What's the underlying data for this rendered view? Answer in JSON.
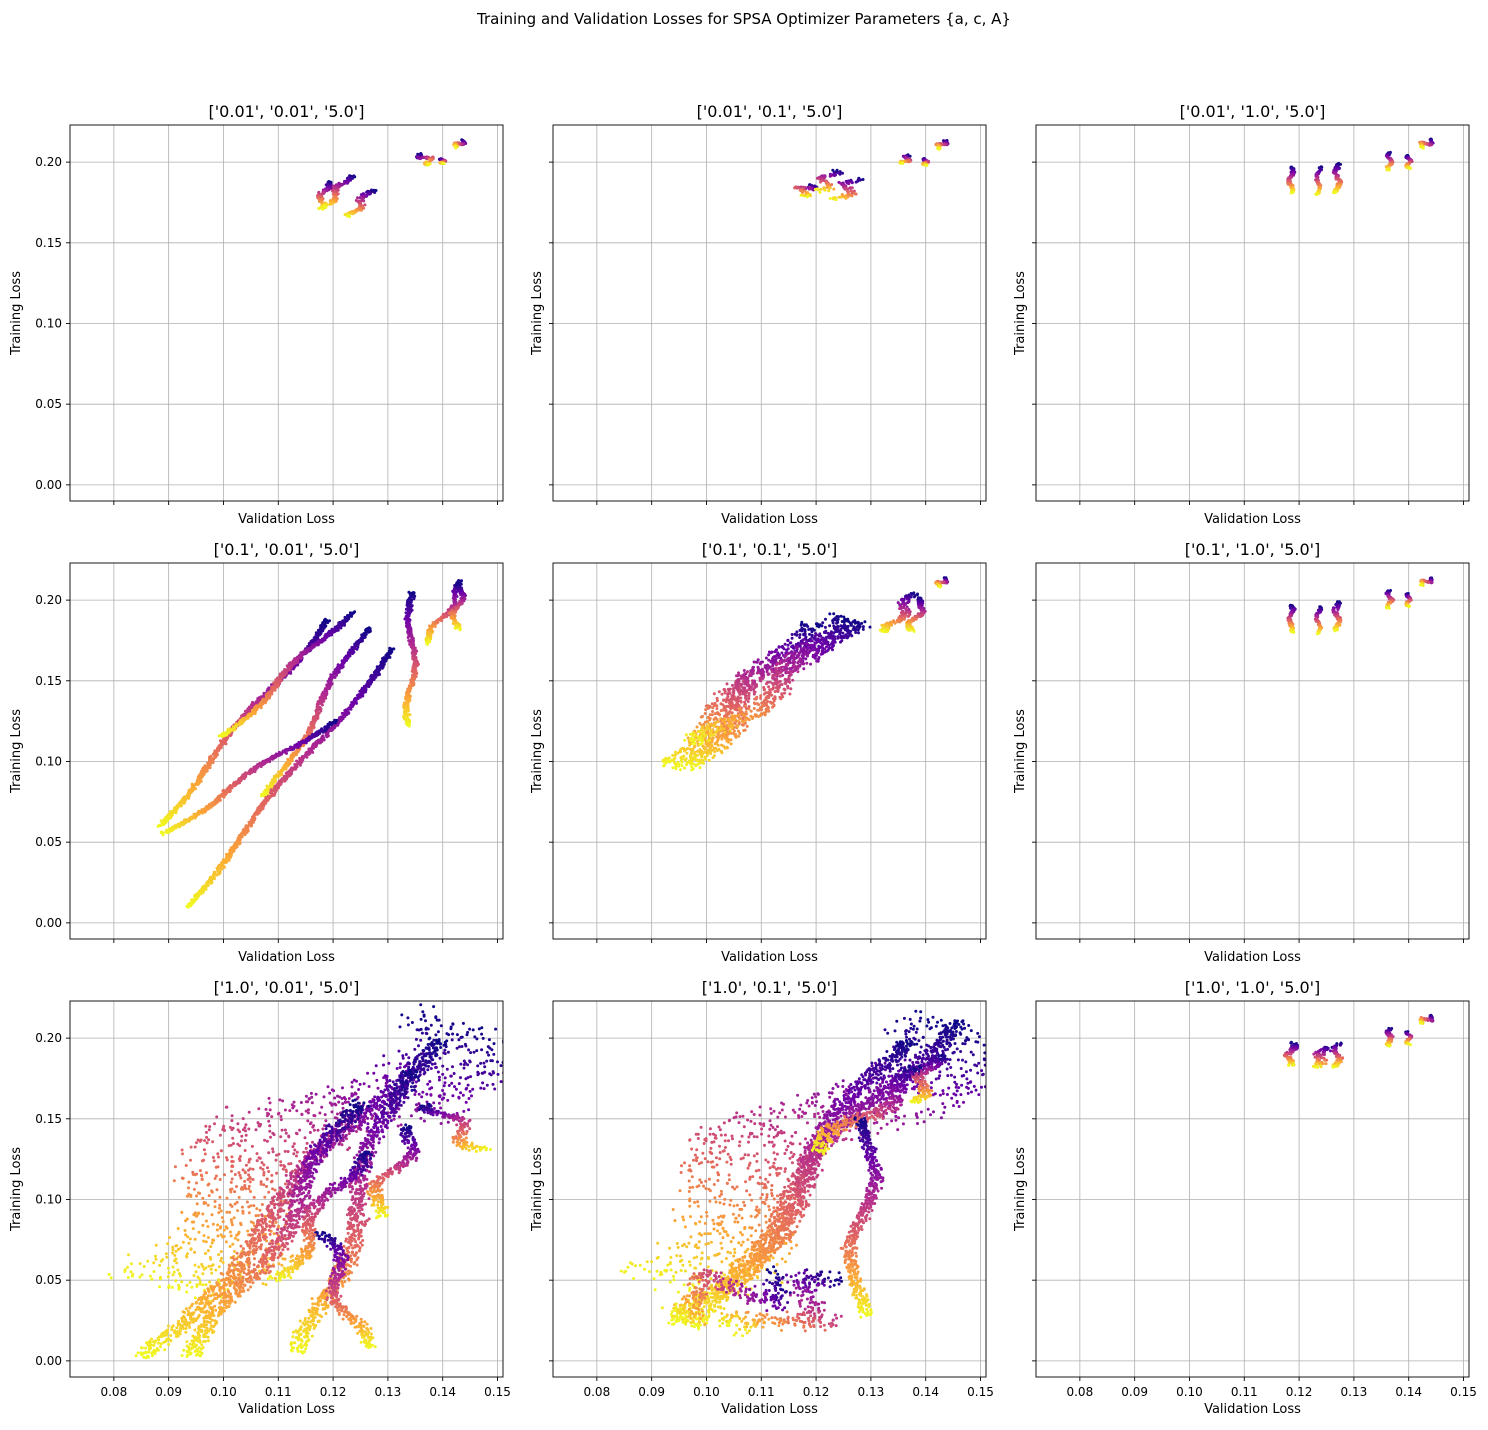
{
  "figure": {
    "suptitle": "Training and Validation Losses for SPSA Optimizer Parameters {a, c, A}"
  },
  "colormap": {
    "name": "plasma",
    "stops": [
      "#0d0887",
      "#6a00a8",
      "#b12a90",
      "#e16462",
      "#fca636",
      "#f0f921"
    ]
  },
  "chart_data": [
    {
      "type": "scatter",
      "title": "['0.01', '0.01', '5.0']",
      "xlabel": "Validation Loss",
      "ylabel": "Training Loss",
      "xlim": [
        0.072,
        0.151
      ],
      "ylim": [
        -0.01,
        0.223
      ],
      "x_ticks": [
        0.08,
        0.09,
        0.1,
        0.11,
        0.12,
        0.13,
        0.14,
        0.15
      ],
      "y_ticks": [
        0.0,
        0.05,
        0.1,
        0.15,
        0.2
      ],
      "show_x_tick_labels": false,
      "show_y_tick_labels": true,
      "grid": true,
      "series": [
        {
          "from": [
            0.119,
            0.188
          ],
          "to": [
            0.1175,
            0.171
          ],
          "width": 0.001,
          "jitter": 0.001
        },
        {
          "from": [
            0.123,
            0.192
          ],
          "to": [
            0.1185,
            0.172
          ],
          "width": 0.001,
          "jitter": 0.001
        },
        {
          "from": [
            0.127,
            0.183
          ],
          "to": [
            0.123,
            0.166
          ],
          "width": 0.0012,
          "jitter": 0.001
        },
        {
          "from": [
            0.136,
            0.205
          ],
          "to": [
            0.138,
            0.199
          ],
          "width": 0.0007,
          "jitter": 0.0015
        },
        {
          "from": [
            0.14,
            0.202
          ],
          "to": [
            0.14,
            0.199
          ],
          "width": 0.0004,
          "jitter": 0.0006
        },
        {
          "from": [
            0.144,
            0.213
          ],
          "to": [
            0.142,
            0.21
          ],
          "width": 0.0006,
          "jitter": 0.0008
        }
      ]
    },
    {
      "type": "scatter",
      "title": "['0.01', '0.1', '5.0']",
      "xlabel": "Validation Loss",
      "ylabel": "Training Loss",
      "xlim": [
        0.072,
        0.151
      ],
      "ylim": [
        -0.01,
        0.223
      ],
      "x_ticks": [
        0.08,
        0.09,
        0.1,
        0.11,
        0.12,
        0.13,
        0.14,
        0.15
      ],
      "y_ticks": [
        0.0,
        0.05,
        0.1,
        0.15,
        0.2
      ],
      "show_x_tick_labels": false,
      "show_y_tick_labels": false,
      "grid": true,
      "series": [
        {
          "from": [
            0.119,
            0.186
          ],
          "to": [
            0.117,
            0.18
          ],
          "width": 0.0012,
          "jitter": 0.002
        },
        {
          "from": [
            0.123,
            0.195
          ],
          "to": [
            0.121,
            0.182
          ],
          "width": 0.0015,
          "jitter": 0.002
        },
        {
          "from": [
            0.127,
            0.19
          ],
          "to": [
            0.1245,
            0.176
          ],
          "width": 0.0014,
          "jitter": 0.002
        },
        {
          "from": [
            0.137,
            0.204
          ],
          "to": [
            0.136,
            0.199
          ],
          "width": 0.0006,
          "jitter": 0.001
        },
        {
          "from": [
            0.14,
            0.202
          ],
          "to": [
            0.14,
            0.198
          ],
          "width": 0.0004,
          "jitter": 0.0006
        },
        {
          "from": [
            0.144,
            0.213
          ],
          "to": [
            0.142,
            0.209
          ],
          "width": 0.0006,
          "jitter": 0.0008
        }
      ]
    },
    {
      "type": "scatter",
      "title": "['0.01', '1.0', '5.0']",
      "xlabel": "Validation Loss",
      "ylabel": "Training Loss",
      "xlim": [
        0.072,
        0.151
      ],
      "ylim": [
        -0.01,
        0.223
      ],
      "x_ticks": [
        0.08,
        0.09,
        0.1,
        0.11,
        0.12,
        0.13,
        0.14,
        0.15
      ],
      "y_ticks": [
        0.0,
        0.05,
        0.1,
        0.15,
        0.2
      ],
      "show_x_tick_labels": false,
      "show_y_tick_labels": false,
      "grid": true,
      "series": [
        {
          "from": [
            0.1185,
            0.197
          ],
          "to": [
            0.1185,
            0.181
          ],
          "width": 0.0006,
          "jitter": 0.0006
        },
        {
          "from": [
            0.1235,
            0.197
          ],
          "to": [
            0.1235,
            0.18
          ],
          "width": 0.0005,
          "jitter": 0.0006
        },
        {
          "from": [
            0.127,
            0.199
          ],
          "to": [
            0.127,
            0.181
          ],
          "width": 0.0008,
          "jitter": 0.0006
        },
        {
          "from": [
            0.1365,
            0.206
          ],
          "to": [
            0.1365,
            0.195
          ],
          "width": 0.0006,
          "jitter": 0.0006
        },
        {
          "from": [
            0.14,
            0.204
          ],
          "to": [
            0.14,
            0.196
          ],
          "width": 0.0004,
          "jitter": 0.0006
        },
        {
          "from": [
            0.1445,
            0.213
          ],
          "to": [
            0.142,
            0.21
          ],
          "width": 0.0006,
          "jitter": 0.0008
        }
      ]
    },
    {
      "type": "scatter",
      "title": "['0.1', '0.01', '5.0']",
      "xlabel": "Validation Loss",
      "ylabel": "Training Loss",
      "xlim": [
        0.072,
        0.151
      ],
      "ylim": [
        -0.01,
        0.223
      ],
      "x_ticks": [
        0.08,
        0.09,
        0.1,
        0.11,
        0.12,
        0.13,
        0.14,
        0.15
      ],
      "y_ticks": [
        0.0,
        0.05,
        0.1,
        0.15,
        0.2
      ],
      "show_x_tick_labels": false,
      "show_y_tick_labels": true,
      "grid": true,
      "series": [
        {
          "from": [
            0.119,
            0.188
          ],
          "to": [
            0.088,
            0.06
          ],
          "width": 0.0008,
          "jitter": 0.0012
        },
        {
          "from": [
            0.123,
            0.193
          ],
          "to": [
            0.1,
            0.115
          ],
          "width": 0.0008,
          "jitter": 0.0012
        },
        {
          "from": [
            0.126,
            0.183
          ],
          "to": [
            0.108,
            0.078
          ],
          "width": 0.0008,
          "jitter": 0.0012
        },
        {
          "from": [
            0.1345,
            0.205
          ],
          "to": [
            0.134,
            0.122
          ],
          "width": 0.0008,
          "jitter": 0.0012
        },
        {
          "from": [
            0.144,
            0.212
          ],
          "to": [
            0.137,
            0.173
          ],
          "width": 0.0008,
          "jitter": 0.0012
        },
        {
          "from": [
            0.1435,
            0.21
          ],
          "to": [
            0.142,
            0.182
          ],
          "width": 0.0008,
          "jitter": 0.0012
        },
        {
          "from": [
            0.131,
            0.17
          ],
          "to": [
            0.093,
            0.01
          ],
          "width": 0.0008,
          "jitter": 0.0012
        },
        {
          "from": [
            0.12,
            0.126
          ],
          "to": [
            0.089,
            0.055
          ],
          "width": 0.0008,
          "jitter": 0.0012
        }
      ]
    },
    {
      "type": "scatter",
      "title": "['0.1', '0.1', '5.0']",
      "xlabel": "Validation Loss",
      "ylabel": "Training Loss",
      "xlim": [
        0.072,
        0.151
      ],
      "ylim": [
        -0.01,
        0.223
      ],
      "x_ticks": [
        0.08,
        0.09,
        0.1,
        0.11,
        0.12,
        0.13,
        0.14,
        0.15
      ],
      "y_ticks": [
        0.0,
        0.05,
        0.1,
        0.15,
        0.2
      ],
      "show_x_tick_labels": false,
      "show_y_tick_labels": false,
      "grid": true,
      "series": [
        {
          "from": [
            0.125,
            0.19
          ],
          "to": [
            0.092,
            0.098
          ],
          "width": 0.005,
          "jitter": 0.0035
        },
        {
          "from": [
            0.118,
            0.187
          ],
          "to": [
            0.097,
            0.096
          ],
          "width": 0.004,
          "jitter": 0.003
        },
        {
          "from": [
            0.127,
            0.188
          ],
          "to": [
            0.099,
            0.11
          ],
          "width": 0.004,
          "jitter": 0.003
        },
        {
          "from": [
            0.138,
            0.204
          ],
          "to": [
            0.133,
            0.18
          ],
          "width": 0.0015,
          "jitter": 0.0015
        },
        {
          "from": [
            0.14,
            0.201
          ],
          "to": [
            0.137,
            0.181
          ],
          "width": 0.001,
          "jitter": 0.0012
        },
        {
          "from": [
            0.144,
            0.213
          ],
          "to": [
            0.142,
            0.209
          ],
          "width": 0.0006,
          "jitter": 0.0008
        }
      ]
    },
    {
      "type": "scatter",
      "title": "['0.1', '1.0', '5.0']",
      "xlabel": "Validation Loss",
      "ylabel": "Training Loss",
      "xlim": [
        0.072,
        0.151
      ],
      "ylim": [
        -0.01,
        0.223
      ],
      "x_ticks": [
        0.08,
        0.09,
        0.1,
        0.11,
        0.12,
        0.13,
        0.14,
        0.15
      ],
      "y_ticks": [
        0.0,
        0.05,
        0.1,
        0.15,
        0.2
      ],
      "show_x_tick_labels": false,
      "show_y_tick_labels": false,
      "grid": true,
      "series": [
        {
          "from": [
            0.1185,
            0.197
          ],
          "to": [
            0.1185,
            0.18
          ],
          "width": 0.0006,
          "jitter": 0.0006
        },
        {
          "from": [
            0.1235,
            0.196
          ],
          "to": [
            0.1235,
            0.179
          ],
          "width": 0.0005,
          "jitter": 0.0006
        },
        {
          "from": [
            0.127,
            0.199
          ],
          "to": [
            0.127,
            0.181
          ],
          "width": 0.0008,
          "jitter": 0.0006
        },
        {
          "from": [
            0.1365,
            0.206
          ],
          "to": [
            0.1365,
            0.195
          ],
          "width": 0.0006,
          "jitter": 0.0006
        },
        {
          "from": [
            0.14,
            0.204
          ],
          "to": [
            0.14,
            0.196
          ],
          "width": 0.0004,
          "jitter": 0.0006
        },
        {
          "from": [
            0.1445,
            0.213
          ],
          "to": [
            0.142,
            0.21
          ],
          "width": 0.0006,
          "jitter": 0.0008
        }
      ]
    },
    {
      "type": "scatter",
      "title": "['1.0', '0.01', '5.0']",
      "xlabel": "Validation Loss",
      "ylabel": "Training Loss",
      "xlim": [
        0.072,
        0.151
      ],
      "ylim": [
        -0.01,
        0.223
      ],
      "x_ticks": [
        0.08,
        0.09,
        0.1,
        0.11,
        0.12,
        0.13,
        0.14,
        0.15
      ],
      "y_ticks": [
        0.0,
        0.05,
        0.1,
        0.15,
        0.2
      ],
      "show_x_tick_labels": true,
      "show_y_tick_labels": true,
      "grid": true,
      "series": [
        {
          "from": [
            0.143,
            0.21
          ],
          "to": [
            0.085,
            0.05
          ],
          "width": 0.02,
          "jitter": 0.012
        },
        {
          "from": [
            0.138,
            0.2
          ],
          "to": [
            0.086,
            0.002
          ],
          "width": 0.003,
          "jitter": 0.003
        },
        {
          "from": [
            0.133,
            0.18
          ],
          "to": [
            0.115,
            0.005
          ],
          "width": 0.003,
          "jitter": 0.003
        },
        {
          "from": [
            0.125,
            0.16
          ],
          "to": [
            0.095,
            0.002
          ],
          "width": 0.003,
          "jitter": 0.003
        },
        {
          "from": [
            0.138,
            0.16
          ],
          "to": [
            0.147,
            0.13
          ],
          "width": 0.002,
          "jitter": 0.003
        },
        {
          "from": [
            0.135,
            0.145
          ],
          "to": [
            0.127,
            0.09
          ],
          "width": 0.002,
          "jitter": 0.003
        },
        {
          "from": [
            0.118,
            0.08
          ],
          "to": [
            0.125,
            0.008
          ],
          "width": 0.002,
          "jitter": 0.003
        },
        {
          "from": [
            0.125,
            0.13
          ],
          "to": [
            0.11,
            0.05
          ],
          "width": 0.002,
          "jitter": 0.003
        }
      ]
    },
    {
      "type": "scatter",
      "title": "['1.0', '0.1', '5.0']",
      "xlabel": "Validation Loss",
      "ylabel": "Training Loss",
      "xlim": [
        0.072,
        0.151
      ],
      "ylim": [
        -0.01,
        0.223
      ],
      "x_ticks": [
        0.08,
        0.09,
        0.1,
        0.11,
        0.12,
        0.13,
        0.14,
        0.15
      ],
      "y_ticks": [
        0.0,
        0.05,
        0.1,
        0.15,
        0.2
      ],
      "show_x_tick_labels": true,
      "show_y_tick_labels": false,
      "grid": true,
      "series": [
        {
          "from": [
            0.143,
            0.21
          ],
          "to": [
            0.09,
            0.05
          ],
          "width": 0.02,
          "jitter": 0.012
        },
        {
          "from": [
            0.144,
            0.212
          ],
          "to": [
            0.095,
            0.023
          ],
          "width": 0.003,
          "jitter": 0.004
        },
        {
          "from": [
            0.135,
            0.2
          ],
          "to": [
            0.1,
            0.02
          ],
          "width": 0.003,
          "jitter": 0.004
        },
        {
          "from": [
            0.125,
            0.05
          ],
          "to": [
            0.108,
            0.015
          ],
          "width": 0.006,
          "jitter": 0.008
        },
        {
          "from": [
            0.14,
            0.18
          ],
          "to": [
            0.12,
            0.13
          ],
          "width": 0.003,
          "jitter": 0.003
        },
        {
          "from": [
            0.13,
            0.15
          ],
          "to": [
            0.127,
            0.028
          ],
          "width": 0.002,
          "jitter": 0.003
        },
        {
          "from": [
            0.114,
            0.05
          ],
          "to": [
            0.092,
            0.035
          ],
          "width": 0.005,
          "jitter": 0.006
        },
        {
          "from": [
            0.142,
            0.19
          ],
          "to": [
            0.138,
            0.16
          ],
          "width": 0.002,
          "jitter": 0.002
        }
      ]
    },
    {
      "type": "scatter",
      "title": "['1.0', '1.0', '5.0']",
      "xlabel": "Validation Loss",
      "ylabel": "Training Loss",
      "xlim": [
        0.072,
        0.151
      ],
      "ylim": [
        -0.01,
        0.223
      ],
      "x_ticks": [
        0.08,
        0.09,
        0.1,
        0.11,
        0.12,
        0.13,
        0.14,
        0.15
      ],
      "y_ticks": [
        0.0,
        0.05,
        0.1,
        0.15,
        0.2
      ],
      "show_x_tick_labels": true,
      "show_y_tick_labels": false,
      "grid": true,
      "series": [
        {
          "from": [
            0.119,
            0.197
          ],
          "to": [
            0.118,
            0.183
          ],
          "width": 0.0012,
          "jitter": 0.0008
        },
        {
          "from": [
            0.125,
            0.195
          ],
          "to": [
            0.123,
            0.182
          ],
          "width": 0.002,
          "jitter": 0.001
        },
        {
          "from": [
            0.127,
            0.197
          ],
          "to": [
            0.127,
            0.182
          ],
          "width": 0.001,
          "jitter": 0.0008
        },
        {
          "from": [
            0.1365,
            0.206
          ],
          "to": [
            0.1365,
            0.195
          ],
          "width": 0.0008,
          "jitter": 0.0006
        },
        {
          "from": [
            0.14,
            0.204
          ],
          "to": [
            0.14,
            0.196
          ],
          "width": 0.0004,
          "jitter": 0.0006
        },
        {
          "from": [
            0.1445,
            0.213
          ],
          "to": [
            0.142,
            0.21
          ],
          "width": 0.0006,
          "jitter": 0.0008
        }
      ]
    }
  ]
}
